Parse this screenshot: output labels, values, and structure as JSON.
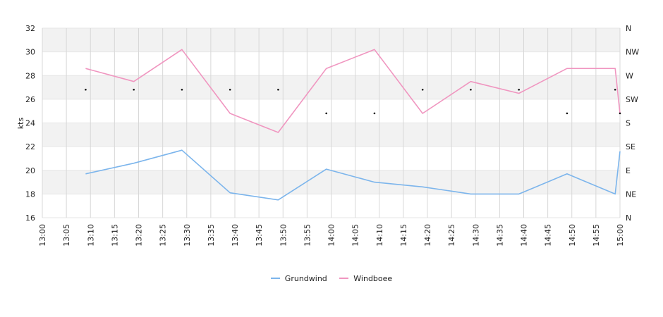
{
  "chart_data": {
    "type": "line",
    "ylabel": "kts",
    "ylim": [
      16,
      32
    ],
    "yticks": [
      "16",
      "18",
      "20",
      "22",
      "24",
      "26",
      "28",
      "30",
      "32"
    ],
    "x_range": [
      "13:00",
      "15:00"
    ],
    "xticks": [
      "13:00",
      "13:05",
      "13:10",
      "13:15",
      "13:20",
      "13:25",
      "13:30",
      "13:35",
      "13:40",
      "13:45",
      "13:50",
      "13:55",
      "14:00",
      "14:05",
      "14:10",
      "14:15",
      "14:20",
      "14:25",
      "14:30",
      "14:35",
      "14:40",
      "14:45",
      "14:50",
      "14:55",
      "15:00"
    ],
    "direction_axis": [
      "N",
      "NE",
      "E",
      "SE",
      "S",
      "SW",
      "W",
      "NW",
      "N"
    ],
    "grid": true,
    "legend_position": "bottom",
    "series": [
      {
        "name": "Grundwind",
        "color": "#7cb5ec",
        "points": [
          [
            "13:09",
            19.7
          ],
          [
            "13:19",
            20.6
          ],
          [
            "13:29",
            21.7
          ],
          [
            "13:39",
            18.1
          ],
          [
            "13:49",
            17.5
          ],
          [
            "13:59",
            20.1
          ],
          [
            "14:09",
            19.0
          ],
          [
            "14:19",
            18.6
          ],
          [
            "14:29",
            18.0
          ],
          [
            "14:39",
            18.0
          ],
          [
            "14:49",
            19.7
          ],
          [
            "14:59",
            18.0
          ],
          [
            "15:00",
            21.6
          ]
        ]
      },
      {
        "name": "Windboee",
        "color": "#f096c0",
        "points": [
          [
            "13:09",
            28.6
          ],
          [
            "13:19",
            27.5
          ],
          [
            "13:29",
            30.2
          ],
          [
            "13:39",
            24.8
          ],
          [
            "13:49",
            23.2
          ],
          [
            "13:59",
            28.6
          ],
          [
            "14:09",
            30.2
          ],
          [
            "14:19",
            24.8
          ],
          [
            "14:29",
            27.5
          ],
          [
            "14:39",
            26.5
          ],
          [
            "14:49",
            28.6
          ],
          [
            "14:59",
            28.6
          ],
          [
            "15:00",
            24.8
          ]
        ]
      }
    ],
    "direction_points": [
      [
        "13:09",
        "W"
      ],
      [
        "13:19",
        "W"
      ],
      [
        "13:29",
        "W"
      ],
      [
        "13:39",
        "W"
      ],
      [
        "13:49",
        "W"
      ],
      [
        "13:59",
        "SW"
      ],
      [
        "14:09",
        "SW"
      ],
      [
        "14:19",
        "W"
      ],
      [
        "14:29",
        "W"
      ],
      [
        "14:39",
        "W"
      ],
      [
        "14:49",
        "SW"
      ],
      [
        "14:59",
        "W"
      ],
      [
        "15:00",
        "SW"
      ]
    ]
  }
}
